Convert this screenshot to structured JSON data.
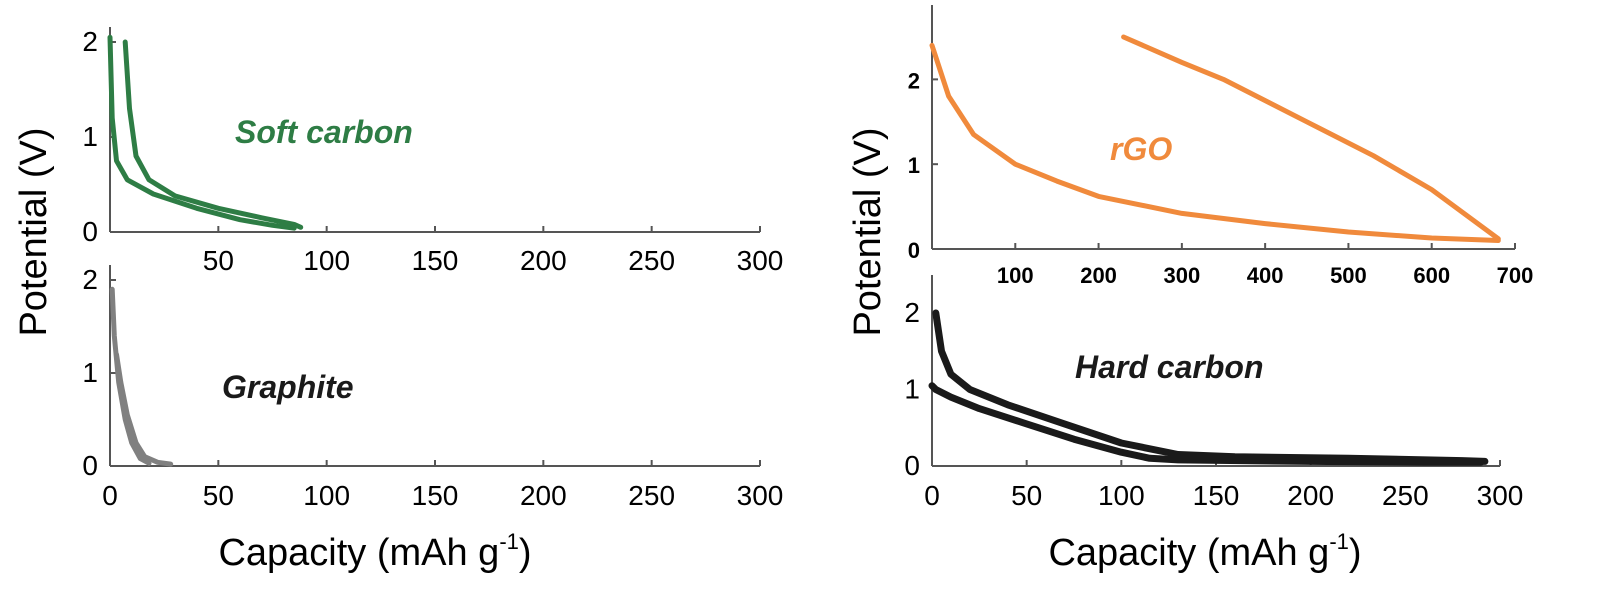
{
  "chart_data": [
    {
      "type": "line",
      "panel": "soft-carbon",
      "xlim": [
        0,
        300
      ],
      "ylim": [
        0,
        2
      ],
      "x_ticks": [
        "50",
        "100",
        "150",
        "200",
        "250",
        "300"
      ],
      "y_ticks": [
        "0",
        "1",
        "2"
      ],
      "annotation": "Soft carbon",
      "color": "#2e7d45",
      "series": [
        {
          "x": [
            0,
            1,
            3,
            8,
            20,
            40,
            60,
            75,
            85
          ],
          "y": [
            2.05,
            1.2,
            0.75,
            0.55,
            0.4,
            0.25,
            0.13,
            0.07,
            0.04
          ]
        },
        {
          "x": [
            7,
            9,
            12,
            18,
            30,
            50,
            70,
            85,
            88
          ],
          "y": [
            2.0,
            1.3,
            0.8,
            0.55,
            0.38,
            0.25,
            0.15,
            0.08,
            0.05
          ]
        }
      ]
    },
    {
      "type": "line",
      "panel": "graphite",
      "xlim": [
        0,
        300
      ],
      "ylim": [
        0,
        2
      ],
      "x_ticks": [
        "0",
        "50",
        "100",
        "150",
        "200",
        "250",
        "300"
      ],
      "y_ticks": [
        "0",
        "1",
        "2"
      ],
      "annotation": "Graphite",
      "color": "#808080",
      "series": [
        {
          "x": [
            1,
            2,
            4,
            7,
            10,
            14,
            18
          ],
          "y": [
            1.9,
            1.4,
            0.9,
            0.5,
            0.25,
            0.08,
            0.03
          ]
        },
        {
          "x": [
            3,
            5,
            8,
            12,
            16,
            22,
            28
          ],
          "y": [
            1.2,
            0.9,
            0.55,
            0.25,
            0.1,
            0.04,
            0.02
          ]
        }
      ]
    },
    {
      "type": "line",
      "panel": "rgo",
      "xlim": [
        0,
        700
      ],
      "ylim": [
        0,
        2.7
      ],
      "x_ticks": [
        "100",
        "200",
        "300",
        "400",
        "500",
        "600",
        "700"
      ],
      "y_ticks": [
        "0",
        "1",
        "2"
      ],
      "annotation": "rGO",
      "color": "#f08a3c",
      "series": [
        {
          "x": [
            0,
            20,
            50,
            100,
            150,
            200,
            300,
            400,
            500,
            600,
            680
          ],
          "y": [
            2.4,
            1.8,
            1.35,
            1.0,
            0.8,
            0.62,
            0.42,
            0.3,
            0.2,
            0.13,
            0.1
          ]
        },
        {
          "x": [
            680,
            600,
            530,
            450,
            350,
            300,
            230
          ],
          "y": [
            0.12,
            0.7,
            1.1,
            1.5,
            2.0,
            2.2,
            2.5
          ]
        }
      ]
    },
    {
      "type": "line",
      "panel": "hard-carbon",
      "xlim": [
        0,
        300
      ],
      "ylim": [
        0,
        2.3
      ],
      "x_ticks": [
        "0",
        "50",
        "100",
        "150",
        "200",
        "250",
        "300"
      ],
      "y_ticks": [
        "0",
        "1",
        "2"
      ],
      "annotation": "Hard carbon",
      "color": "#1a1a1a",
      "series": [
        {
          "x": [
            0,
            2,
            10,
            25,
            50,
            75,
            100,
            115,
            130,
            200,
            260,
            290
          ],
          "y": [
            1.05,
            1.0,
            0.9,
            0.75,
            0.55,
            0.35,
            0.18,
            0.1,
            0.08,
            0.06,
            0.05,
            0.05
          ]
        },
        {
          "x": [
            2,
            5,
            10,
            20,
            40,
            70,
            100,
            130,
            160,
            220,
            280,
            292
          ],
          "y": [
            2.0,
            1.5,
            1.2,
            1.0,
            0.8,
            0.55,
            0.3,
            0.15,
            0.12,
            0.1,
            0.07,
            0.06
          ]
        }
      ]
    }
  ],
  "axis_titles": {
    "left_y": "Potential (V)",
    "left_x": "Capacity (mAh g",
    "left_x_sup": "-1",
    "left_x_end": ")",
    "right_y": "Potential (V)",
    "right_x": "Capacity (mAh g",
    "right_x_sup": "-1",
    "right_x_end": ")"
  }
}
